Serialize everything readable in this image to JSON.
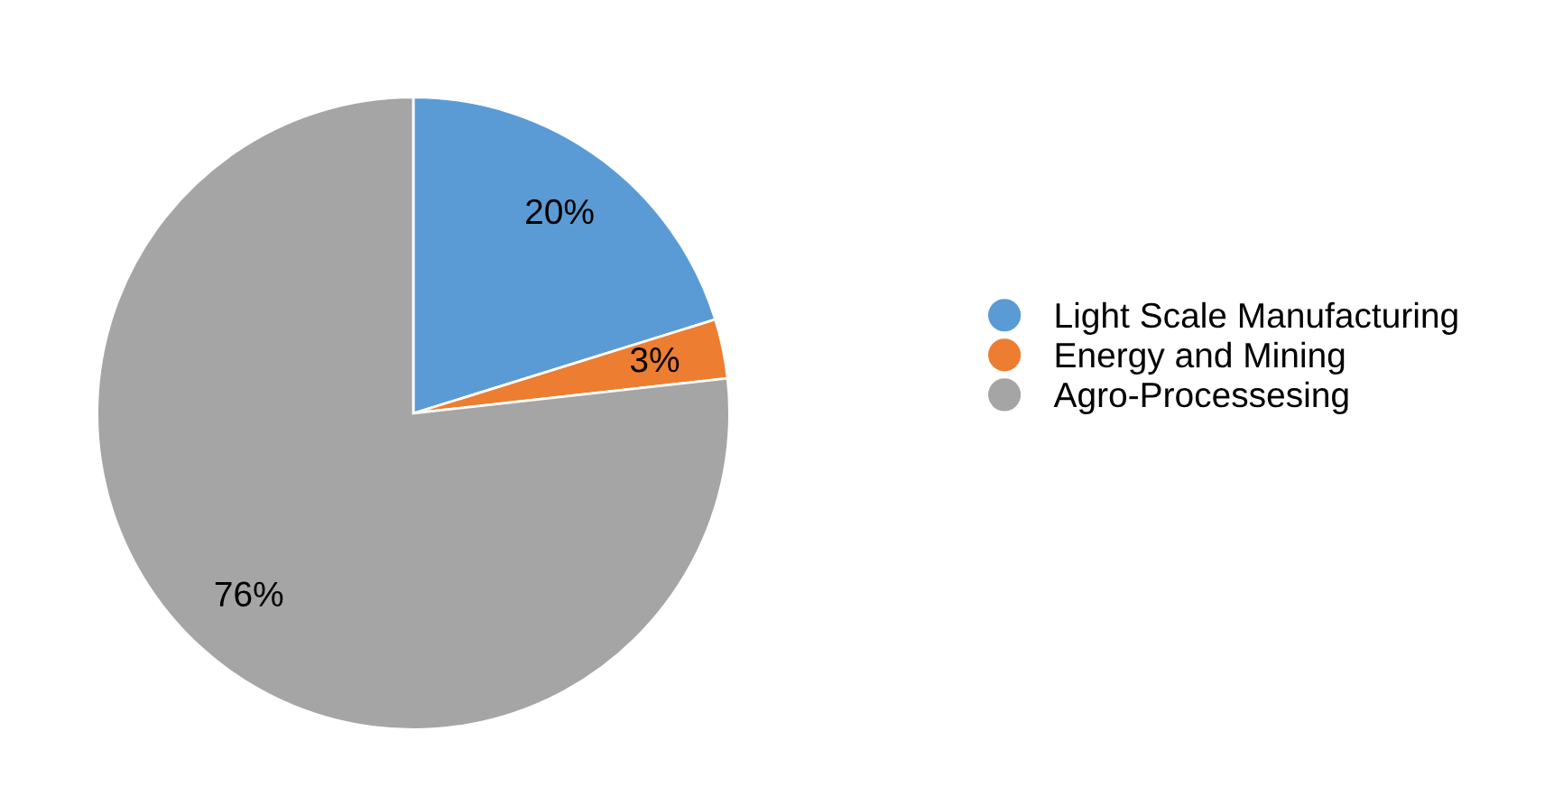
{
  "chart_data": {
    "type": "pie",
    "categories": [
      "Light Scale Manufacturing",
      "Energy and Mining",
      "Agro-Processesing"
    ],
    "values": [
      20,
      3,
      76
    ],
    "colors": [
      "#5b9bd5",
      "#ed7d31",
      "#a5a5a5"
    ],
    "value_labels": [
      "20%",
      "3%",
      "76%"
    ],
    "legend": "right"
  }
}
